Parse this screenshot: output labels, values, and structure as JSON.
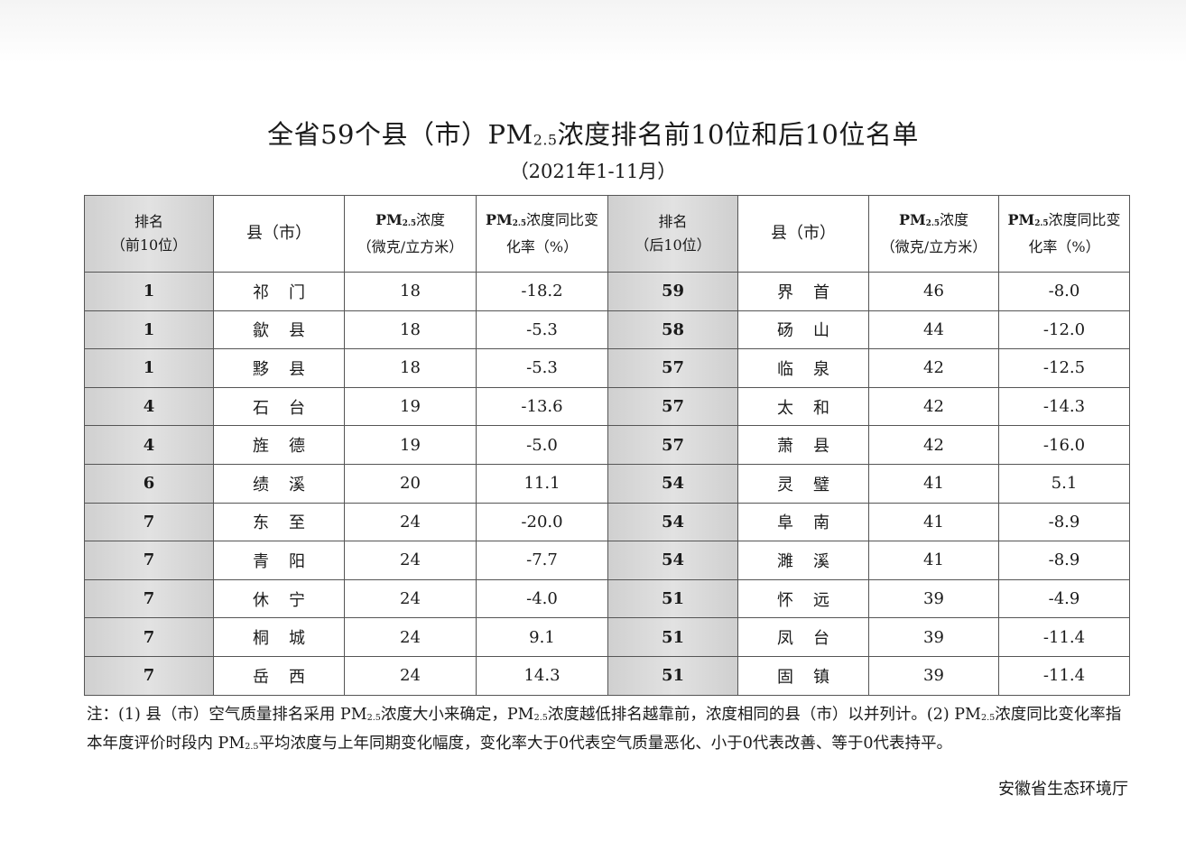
{
  "title": {
    "pre": "全省59个县（市）PM",
    "sub": "2.5",
    "post": "浓度排名前10位和后10位名单"
  },
  "subtitle": "（2021年1-11月）",
  "headers": {
    "rank_top": [
      "排名",
      "（前10位）"
    ],
    "county": "县（市）",
    "pm_conc": {
      "pm": "PM",
      "sub": "2.5",
      "l1": "浓度",
      "l2": "（微克/立方米）"
    },
    "pm_change": {
      "pm": "PM",
      "sub": "2.5",
      "l1": "浓度同比变",
      "l2": "化率（%）"
    },
    "rank_bottom": [
      "排名",
      "（后10位）"
    ]
  },
  "rows": [
    {
      "r1": "1",
      "c1": "祁门",
      "p1": "18",
      "d1": "-18.2",
      "r2": "59",
      "c2": "界首",
      "p2": "46",
      "d2": "-8.0"
    },
    {
      "r1": "1",
      "c1": "歙县",
      "p1": "18",
      "d1": "-5.3",
      "r2": "58",
      "c2": "砀山",
      "p2": "44",
      "d2": "-12.0"
    },
    {
      "r1": "1",
      "c1": "黟县",
      "p1": "18",
      "d1": "-5.3",
      "r2": "57",
      "c2": "临泉",
      "p2": "42",
      "d2": "-12.5"
    },
    {
      "r1": "4",
      "c1": "石台",
      "p1": "19",
      "d1": "-13.6",
      "r2": "57",
      "c2": "太和",
      "p2": "42",
      "d2": "-14.3"
    },
    {
      "r1": "4",
      "c1": "旌德",
      "p1": "19",
      "d1": "-5.0",
      "r2": "57",
      "c2": "萧县",
      "p2": "42",
      "d2": "-16.0"
    },
    {
      "r1": "6",
      "c1": "绩溪",
      "p1": "20",
      "d1": "11.1",
      "r2": "54",
      "c2": "灵璧",
      "p2": "41",
      "d2": "5.1"
    },
    {
      "r1": "7",
      "c1": "东至",
      "p1": "24",
      "d1": "-20.0",
      "r2": "54",
      "c2": "阜南",
      "p2": "41",
      "d2": "-8.9"
    },
    {
      "r1": "7",
      "c1": "青阳",
      "p1": "24",
      "d1": "-7.7",
      "r2": "54",
      "c2": "濉溪",
      "p2": "41",
      "d2": "-8.9"
    },
    {
      "r1": "7",
      "c1": "休宁",
      "p1": "24",
      "d1": "-4.0",
      "r2": "51",
      "c2": "怀远",
      "p2": "39",
      "d2": "-4.9"
    },
    {
      "r1": "7",
      "c1": "桐城",
      "p1": "24",
      "d1": "9.1",
      "r2": "51",
      "c2": "凤台",
      "p2": "39",
      "d2": "-11.4"
    },
    {
      "r1": "7",
      "c1": "岳西",
      "p1": "24",
      "d1": "14.3",
      "r2": "51",
      "c2": "固镇",
      "p2": "39",
      "d2": "-11.4"
    }
  ],
  "note": {
    "s1": "注：(1) 县（市）空气质量排名采用 PM",
    "sub": "2.5",
    "s2": "浓度大小来确定，PM",
    "s3": "浓度越低排名越靠前，浓度相同的县（市）以并列计。(2) PM",
    "s4": "浓度同比变化率指本年度评价时段内 PM",
    "s5": "平均浓度与上年同期变化幅度，变化率大于0代表空气质量恶化、小于0代表改善、等于0代表持平。"
  },
  "org": "安徽省生态环境厅"
}
